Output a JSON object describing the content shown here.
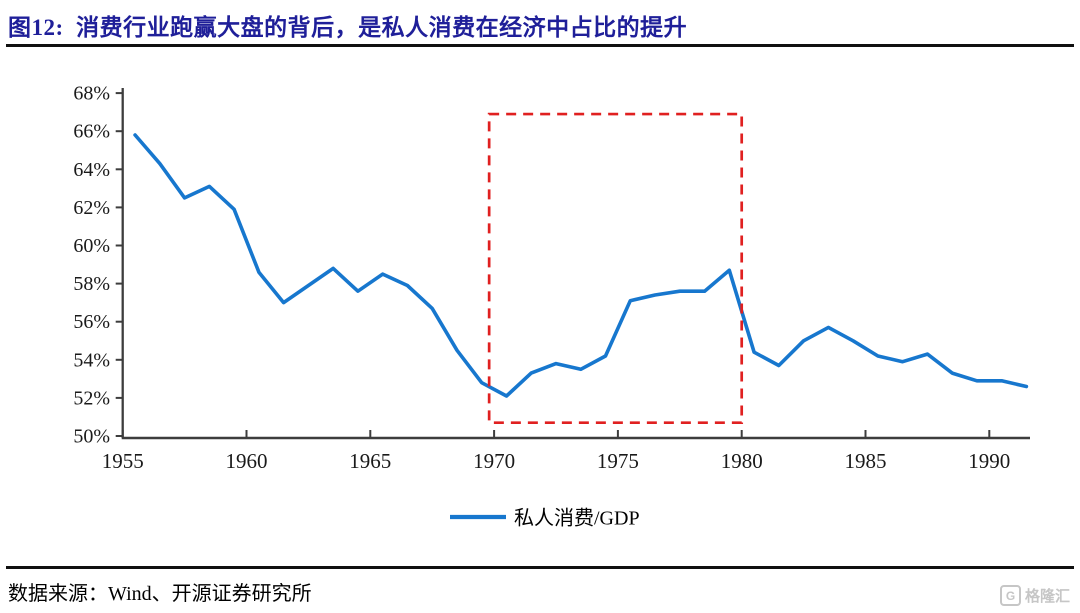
{
  "header": {
    "title": "图12:  消费行业跑赢大盘的背后，是私人消费在经济中占比的提升"
  },
  "footer": {
    "source": "数据来源：Wind、开源证券研究所",
    "watermark": "格隆汇",
    "watermark_icon": "G"
  },
  "chart_data": {
    "type": "line",
    "title": "",
    "xlabel": "",
    "ylabel": "",
    "grid": false,
    "ylim": [
      50,
      68
    ],
    "y_ticks": [
      "68%",
      "66%",
      "64%",
      "62%",
      "60%",
      "58%",
      "56%",
      "54%",
      "52%",
      "50%"
    ],
    "y_tick_values": [
      68,
      66,
      64,
      62,
      60,
      58,
      56,
      54,
      52,
      50
    ],
    "x_ticks": [
      1955,
      1960,
      1965,
      1970,
      1975,
      1980,
      1985,
      1990
    ],
    "legend": {
      "position": "bottom-center"
    },
    "series": [
      {
        "name": "私人消费/GDP",
        "color": "#1777ce",
        "x": [
          1955,
          1956,
          1957,
          1958,
          1959,
          1960,
          1961,
          1962,
          1963,
          1964,
          1965,
          1966,
          1967,
          1968,
          1969,
          1970,
          1971,
          1972,
          1973,
          1974,
          1975,
          1976,
          1977,
          1978,
          1979,
          1980,
          1981,
          1982,
          1983,
          1984,
          1985,
          1986,
          1987,
          1988,
          1989,
          1990,
          1991
        ],
        "values": [
          65.8,
          64.3,
          62.5,
          63.1,
          61.9,
          58.6,
          57.0,
          57.9,
          58.8,
          57.6,
          58.5,
          57.9,
          56.7,
          54.5,
          52.8,
          52.1,
          53.3,
          53.8,
          53.5,
          54.2,
          57.1,
          57.4,
          57.6,
          57.6,
          58.7,
          54.4,
          53.7,
          55.0,
          55.7,
          55.0,
          54.2,
          53.9,
          54.3,
          53.3,
          52.9,
          52.9,
          52.6
        ]
      }
    ],
    "annotation_box": {
      "color": "#e02020",
      "style": "dashed",
      "x0": 1969.8,
      "x1": 1980.0,
      "y0": 50.7,
      "y1": 66.9
    },
    "axis_color": "#3d3d3d",
    "label_color": "#1a1a1a"
  }
}
